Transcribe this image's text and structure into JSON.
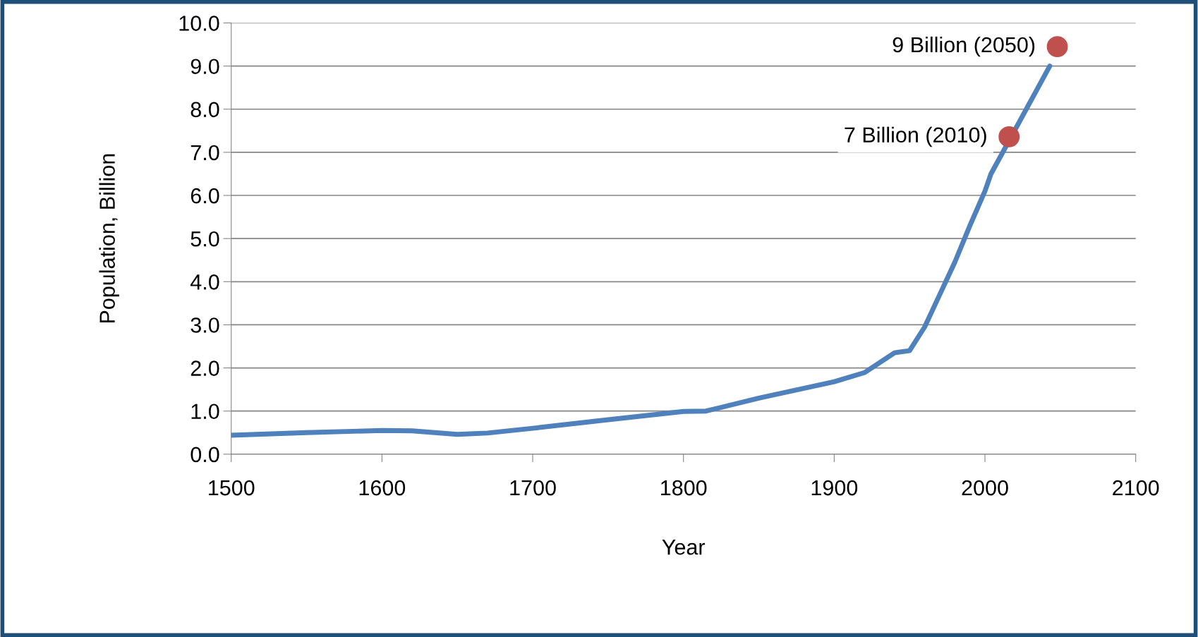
{
  "chart_data": {
    "type": "line",
    "xlabel": "Year",
    "ylabel": "Population, Billion",
    "xlim": [
      1500,
      2100
    ],
    "xticks": [
      1500,
      1600,
      1700,
      1800,
      1900,
      2000,
      2100
    ],
    "ylim": [
      0,
      10
    ],
    "yticks": [
      {
        "value": 0,
        "label": "0.0"
      },
      {
        "value": 1,
        "label": "1.0"
      },
      {
        "value": 2,
        "label": "2.0"
      },
      {
        "value": 3,
        "label": "3.0"
      },
      {
        "value": 4,
        "label": "4.0"
      },
      {
        "value": 5,
        "label": "5.0"
      },
      {
        "value": 6,
        "label": "6.0"
      },
      {
        "value": 7,
        "label": "7.0"
      },
      {
        "value": 8,
        "label": "8.0"
      },
      {
        "value": 9,
        "label": "9.0"
      },
      {
        "value": 10,
        "label": "10.0"
      }
    ],
    "grid": "y",
    "marker": "none",
    "series": [
      {
        "color": "#4f81bd",
        "x": [
          1500,
          1550,
          1600,
          1620,
          1650,
          1670,
          1700,
          1750,
          1800,
          1815,
          1850,
          1900,
          1920,
          1940,
          1950,
          1960,
          1970,
          1980,
          1990,
          2000,
          2004,
          2043
        ],
        "values": [
          0.44,
          0.5,
          0.55,
          0.54,
          0.46,
          0.49,
          0.6,
          0.8,
          0.99,
          1.0,
          1.3,
          1.68,
          1.89,
          2.35,
          2.4,
          2.95,
          3.7,
          4.45,
          5.3,
          6.1,
          6.5,
          9.0
        ]
      },
      {
        "type": "scatter",
        "marker": "circle",
        "color": "#c0504d",
        "x": [
          2016,
          2048
        ],
        "values": [
          7.36,
          9.45
        ]
      }
    ],
    "annotations": [
      {
        "text": "7 Billion (2010)",
        "x": 2016,
        "y": 7.36
      },
      {
        "text": "9 Billion (2050)",
        "x": 2048,
        "y": 9.45
      }
    ]
  }
}
